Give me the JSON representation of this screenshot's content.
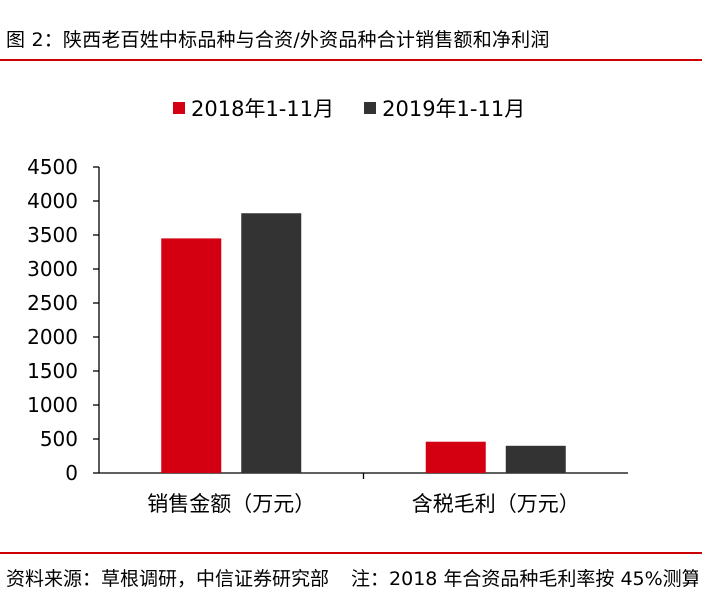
{
  "figure": {
    "title": "图 2：陕西老百姓中标品种与合资/外资品种合计销售额和净利润",
    "source_label": "资料来源：草根调研，中信证券研究部",
    "note": "注：2018 年合资品种毛利率按 45%测算"
  },
  "colors": {
    "title_rule": "#cc0000",
    "series_2018": "#d40012",
    "series_2019": "#333333"
  },
  "chart_data": {
    "type": "bar",
    "categories": [
      "销售金额（万元）",
      "含税毛利（万元）"
    ],
    "series": [
      {
        "name": "2018年1-11月",
        "values": [
          3450,
          460
        ],
        "color": "#d40012"
      },
      {
        "name": "2019年1-11月",
        "values": [
          3820,
          400
        ],
        "color": "#333333"
      }
    ],
    "y_ticks": [
      0,
      500,
      1000,
      1500,
      2000,
      2500,
      3000,
      3500,
      4000,
      4500
    ],
    "ylim": [
      0,
      4500
    ],
    "grid": false,
    "legend": "top-center"
  }
}
